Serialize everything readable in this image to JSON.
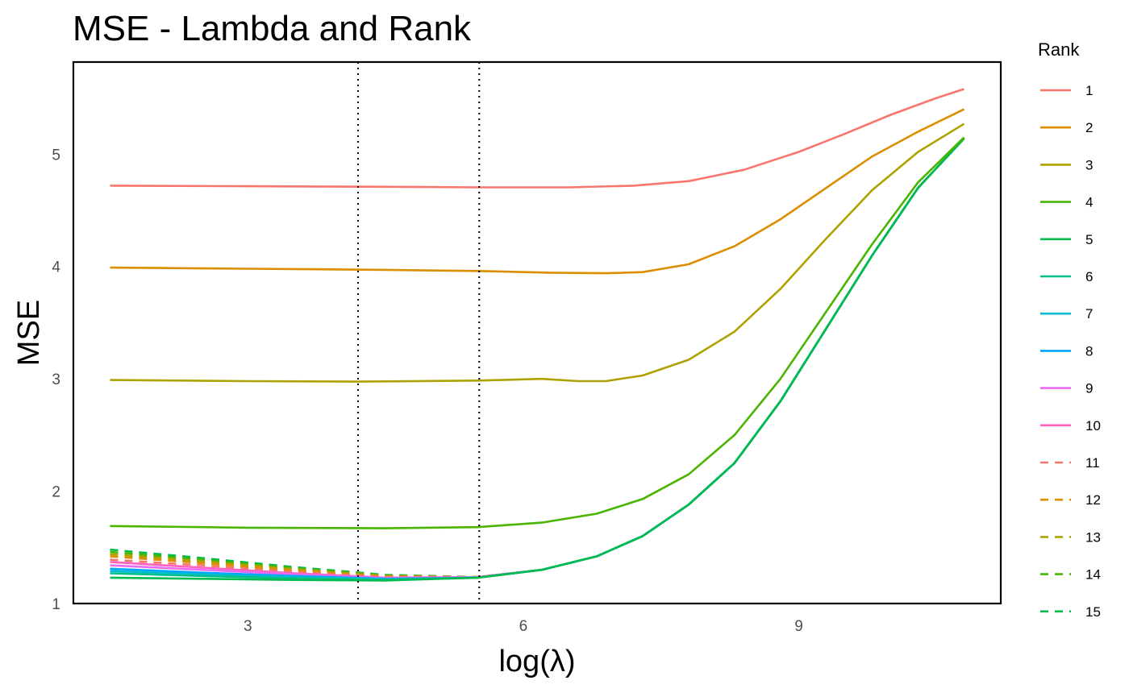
{
  "chart_data": {
    "type": "line",
    "title": "MSE - Lambda and Rank",
    "xlabel": "log(λ)",
    "ylabel": "MSE",
    "xlim": [
      1.1,
      11.2
    ],
    "ylim": [
      1.0,
      5.82
    ],
    "x_ticks": [
      3,
      6,
      9
    ],
    "y_ticks": [
      1,
      2,
      3,
      4,
      5
    ],
    "grid": false,
    "legend": {
      "title": "Rank",
      "placement": "right"
    },
    "vlines": [
      4.2,
      5.52
    ],
    "series": [
      {
        "name": "1",
        "color": "#F8766D",
        "dash": "solid",
        "points": [
          [
            1.5,
            4.72
          ],
          [
            3,
            4.715
          ],
          [
            4.5,
            4.71
          ],
          [
            5.5,
            4.705
          ],
          [
            6.5,
            4.705
          ],
          [
            7.2,
            4.72
          ],
          [
            7.8,
            4.76
          ],
          [
            8.4,
            4.86
          ],
          [
            9,
            5.02
          ],
          [
            9.5,
            5.18
          ],
          [
            10,
            5.35
          ],
          [
            10.5,
            5.5
          ],
          [
            10.8,
            5.58
          ]
        ]
      },
      {
        "name": "2",
        "color": "#DB8E00",
        "dash": "solid",
        "points": [
          [
            1.5,
            3.99
          ],
          [
            3,
            3.98
          ],
          [
            4.5,
            3.97
          ],
          [
            5.5,
            3.96
          ],
          [
            6.3,
            3.945
          ],
          [
            6.9,
            3.94
          ],
          [
            7.3,
            3.95
          ],
          [
            7.8,
            4.02
          ],
          [
            8.3,
            4.18
          ],
          [
            8.8,
            4.42
          ],
          [
            9.3,
            4.7
          ],
          [
            9.8,
            4.98
          ],
          [
            10.3,
            5.2
          ],
          [
            10.8,
            5.4
          ]
        ]
      },
      {
        "name": "3",
        "color": "#AEA200",
        "dash": "solid",
        "points": [
          [
            1.5,
            2.99
          ],
          [
            3,
            2.98
          ],
          [
            4.2,
            2.975
          ],
          [
            5.5,
            2.985
          ],
          [
            6.2,
            3.0
          ],
          [
            6.6,
            2.98
          ],
          [
            6.9,
            2.98
          ],
          [
            7.3,
            3.03
          ],
          [
            7.8,
            3.17
          ],
          [
            8.3,
            3.42
          ],
          [
            8.8,
            3.8
          ],
          [
            9.3,
            4.25
          ],
          [
            9.8,
            4.68
          ],
          [
            10.3,
            5.02
          ],
          [
            10.8,
            5.27
          ]
        ]
      },
      {
        "name": "4",
        "color": "#49B500",
        "dash": "solid",
        "points": [
          [
            1.5,
            1.69
          ],
          [
            3,
            1.675
          ],
          [
            4.5,
            1.67
          ],
          [
            5.5,
            1.68
          ],
          [
            6.2,
            1.72
          ],
          [
            6.8,
            1.8
          ],
          [
            7.3,
            1.93
          ],
          [
            7.8,
            2.15
          ],
          [
            8.3,
            2.5
          ],
          [
            8.8,
            3.0
          ],
          [
            9.3,
            3.6
          ],
          [
            9.8,
            4.2
          ],
          [
            10.3,
            4.75
          ],
          [
            10.8,
            5.15
          ]
        ]
      },
      {
        "name": "5",
        "color": "#00BB4E",
        "dash": "solid",
        "points": [
          [
            1.5,
            1.23
          ],
          [
            2.5,
            1.22
          ],
          [
            3.5,
            1.21
          ],
          [
            4.5,
            1.205
          ],
          [
            5.5,
            1.23
          ],
          [
            6.2,
            1.3
          ],
          [
            6.8,
            1.42
          ],
          [
            7.3,
            1.6
          ],
          [
            7.8,
            1.88
          ],
          [
            8.3,
            2.25
          ],
          [
            8.8,
            2.8
          ],
          [
            9.3,
            3.45
          ],
          [
            9.8,
            4.1
          ],
          [
            10.3,
            4.7
          ],
          [
            10.8,
            5.14
          ]
        ]
      },
      {
        "name": "6",
        "color": "#00BF8C",
        "dash": "solid",
        "points": [
          [
            1.5,
            1.27
          ],
          [
            2.5,
            1.245
          ],
          [
            3.5,
            1.225
          ],
          [
            4.5,
            1.21
          ],
          [
            5.5,
            1.23
          ],
          [
            6.2,
            1.3
          ],
          [
            6.8,
            1.42
          ],
          [
            7.3,
            1.6
          ],
          [
            7.8,
            1.88
          ],
          [
            8.3,
            2.25
          ],
          [
            8.8,
            2.8
          ],
          [
            9.3,
            3.45
          ],
          [
            9.8,
            4.1
          ],
          [
            10.3,
            4.7
          ],
          [
            10.8,
            5.14
          ]
        ]
      },
      {
        "name": "7",
        "color": "#00BDD0",
        "dash": "solid",
        "points": [
          [
            1.5,
            1.29
          ],
          [
            2.5,
            1.26
          ],
          [
            3.5,
            1.235
          ],
          [
            4.5,
            1.215
          ],
          [
            5.5,
            1.23
          ],
          [
            6.2,
            1.3
          ],
          [
            6.8,
            1.42
          ],
          [
            7.3,
            1.6
          ],
          [
            7.8,
            1.88
          ],
          [
            8.3,
            2.25
          ],
          [
            8.8,
            2.8
          ],
          [
            9.3,
            3.45
          ],
          [
            9.8,
            4.1
          ],
          [
            10.3,
            4.7
          ],
          [
            10.8,
            5.14
          ]
        ]
      },
      {
        "name": "8",
        "color": "#00A5FF",
        "dash": "solid",
        "points": [
          [
            1.5,
            1.31
          ],
          [
            2.5,
            1.275
          ],
          [
            3.5,
            1.245
          ],
          [
            4.5,
            1.22
          ],
          [
            5.5,
            1.23
          ],
          [
            6.2,
            1.3
          ],
          [
            6.8,
            1.42
          ],
          [
            7.3,
            1.6
          ],
          [
            7.8,
            1.88
          ],
          [
            8.3,
            2.25
          ],
          [
            8.8,
            2.8
          ],
          [
            9.3,
            3.45
          ],
          [
            9.8,
            4.1
          ],
          [
            10.3,
            4.7
          ],
          [
            10.8,
            5.14
          ]
        ]
      },
      {
        "name": "9",
        "color": "#E76BF3",
        "dash": "solid",
        "points": [
          [
            1.5,
            1.34
          ],
          [
            2.5,
            1.3
          ],
          [
            3.5,
            1.26
          ],
          [
            4.5,
            1.225
          ],
          [
            5.5,
            1.235
          ],
          [
            6.2,
            1.3
          ],
          [
            6.8,
            1.42
          ],
          [
            7.3,
            1.6
          ],
          [
            7.8,
            1.88
          ],
          [
            8.3,
            2.25
          ],
          [
            8.8,
            2.8
          ],
          [
            9.3,
            3.45
          ],
          [
            9.8,
            4.1
          ],
          [
            10.3,
            4.7
          ],
          [
            10.8,
            5.14
          ]
        ]
      },
      {
        "name": "10",
        "color": "#FF62BC",
        "dash": "solid",
        "points": [
          [
            1.5,
            1.37
          ],
          [
            2.5,
            1.32
          ],
          [
            3.5,
            1.27
          ],
          [
            4.5,
            1.23
          ],
          [
            5.5,
            1.235
          ],
          [
            6.2,
            1.3
          ],
          [
            6.8,
            1.42
          ],
          [
            7.3,
            1.6
          ],
          [
            7.8,
            1.88
          ],
          [
            8.3,
            2.25
          ],
          [
            8.8,
            2.8
          ],
          [
            9.3,
            3.45
          ],
          [
            9.8,
            4.1
          ],
          [
            10.3,
            4.7
          ],
          [
            10.8,
            5.14
          ]
        ]
      },
      {
        "name": "11",
        "color": "#F8766D",
        "dash": "dashed",
        "points": [
          [
            1.5,
            1.39
          ],
          [
            2.5,
            1.34
          ],
          [
            3.5,
            1.28
          ],
          [
            4.5,
            1.235
          ],
          [
            5.5,
            1.235
          ],
          [
            6.2,
            1.3
          ],
          [
            6.8,
            1.42
          ],
          [
            7.3,
            1.6
          ],
          [
            7.8,
            1.88
          ],
          [
            8.3,
            2.25
          ],
          [
            8.8,
            2.8
          ],
          [
            9.3,
            3.45
          ],
          [
            9.8,
            4.1
          ],
          [
            10.3,
            4.7
          ],
          [
            10.8,
            5.14
          ]
        ]
      },
      {
        "name": "12",
        "color": "#DB8E00",
        "dash": "dashed",
        "points": [
          [
            1.5,
            1.42
          ],
          [
            2.5,
            1.36
          ],
          [
            3.5,
            1.295
          ],
          [
            4.5,
            1.24
          ],
          [
            5.5,
            1.235
          ],
          [
            6.2,
            1.3
          ],
          [
            6.8,
            1.42
          ],
          [
            7.3,
            1.6
          ],
          [
            7.8,
            1.88
          ],
          [
            8.3,
            2.25
          ],
          [
            8.8,
            2.8
          ],
          [
            9.3,
            3.45
          ],
          [
            9.8,
            4.1
          ],
          [
            10.3,
            4.7
          ],
          [
            10.8,
            5.14
          ]
        ]
      },
      {
        "name": "13",
        "color": "#AEA200",
        "dash": "dashed",
        "points": [
          [
            1.5,
            1.44
          ],
          [
            2.5,
            1.375
          ],
          [
            3.5,
            1.305
          ],
          [
            4.5,
            1.245
          ],
          [
            5.5,
            1.235
          ],
          [
            6.2,
            1.3
          ],
          [
            6.8,
            1.42
          ],
          [
            7.3,
            1.6
          ],
          [
            7.8,
            1.88
          ],
          [
            8.3,
            2.25
          ],
          [
            8.8,
            2.8
          ],
          [
            9.3,
            3.45
          ],
          [
            9.8,
            4.1
          ],
          [
            10.3,
            4.7
          ],
          [
            10.8,
            5.14
          ]
        ]
      },
      {
        "name": "14",
        "color": "#49B500",
        "dash": "dashed",
        "points": [
          [
            1.5,
            1.46
          ],
          [
            2.5,
            1.39
          ],
          [
            3.5,
            1.315
          ],
          [
            4.5,
            1.25
          ],
          [
            5.5,
            1.235
          ],
          [
            6.2,
            1.3
          ],
          [
            6.8,
            1.42
          ],
          [
            7.3,
            1.6
          ],
          [
            7.8,
            1.88
          ],
          [
            8.3,
            2.25
          ],
          [
            8.8,
            2.8
          ],
          [
            9.3,
            3.45
          ],
          [
            9.8,
            4.1
          ],
          [
            10.3,
            4.7
          ],
          [
            10.8,
            5.14
          ]
        ]
      },
      {
        "name": "15",
        "color": "#00BB4E",
        "dash": "dashed",
        "points": [
          [
            1.5,
            1.48
          ],
          [
            2.5,
            1.405
          ],
          [
            3.5,
            1.325
          ],
          [
            4.5,
            1.255
          ],
          [
            5.5,
            1.235
          ],
          [
            6.2,
            1.3
          ],
          [
            6.8,
            1.42
          ],
          [
            7.3,
            1.6
          ],
          [
            7.8,
            1.88
          ],
          [
            8.3,
            2.25
          ],
          [
            8.8,
            2.8
          ],
          [
            9.3,
            3.45
          ],
          [
            9.8,
            4.1
          ],
          [
            10.3,
            4.7
          ],
          [
            10.8,
            5.14
          ]
        ]
      }
    ]
  }
}
